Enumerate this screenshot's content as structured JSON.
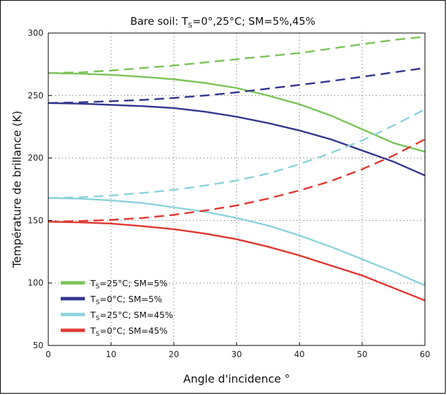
{
  "chart_data": {
    "type": "line",
    "title": "Bare soil: T",
    "title_sub": "S",
    "title_rest": "=0°,25°C; SM=5%,45%",
    "xlabel": "Angle d'incidence °",
    "ylabel": "Température de brillance (K)",
    "xlim": [
      0,
      60
    ],
    "ylim": [
      50,
      300
    ],
    "xticks": [
      0,
      10,
      20,
      30,
      40,
      50,
      60
    ],
    "yticks": [
      50,
      100,
      150,
      200,
      250,
      300
    ],
    "grid": true,
    "legend_position": "bottom-left",
    "x": [
      0,
      5,
      10,
      15,
      20,
      25,
      30,
      35,
      40,
      45,
      50,
      55,
      60
    ],
    "series": [
      {
        "legend_main": "T",
        "legend_sub": "S",
        "legend_rest": "=25°C; SM=5%",
        "color": "#7dc35b",
        "solid": [
          268,
          267.5,
          266.5,
          265,
          263,
          260,
          256,
          250,
          243,
          234,
          223,
          212,
          205
        ],
        "dashed": [
          268,
          268.5,
          270,
          272,
          274,
          276.5,
          279,
          281.5,
          284,
          287.5,
          291,
          294.5,
          297
        ]
      },
      {
        "legend_main": "T",
        "legend_sub": "S",
        "legend_rest": "=0°C; SM=5%",
        "color": "#35388e",
        "solid": [
          244,
          243.5,
          242.5,
          241.5,
          240,
          237,
          233,
          228,
          222,
          215,
          206,
          197,
          186
        ],
        "dashed": [
          244,
          244.5,
          245.5,
          246.5,
          248,
          250,
          252.5,
          255.5,
          258.5,
          261.5,
          265,
          268.5,
          272
        ]
      },
      {
        "legend_main": "T",
        "legend_sub": "S",
        "legend_rest": "=25°C; SM=45%",
        "color": "#8dd3dc",
        "solid": [
          168,
          167.5,
          166,
          164,
          160.5,
          157,
          152,
          146,
          138,
          129,
          119,
          109,
          98
        ],
        "dashed": [
          168,
          168.5,
          170,
          172,
          174.5,
          178,
          182,
          187.5,
          195,
          204,
          214,
          226,
          239
        ]
      },
      {
        "legend_main": "T",
        "legend_sub": "S",
        "legend_rest": "=0°C; SM=45%",
        "color": "#e03a33",
        "solid": [
          149,
          148.5,
          147.5,
          145.5,
          143,
          139.5,
          135,
          129,
          122,
          114,
          106,
          96,
          86
        ],
        "dashed": [
          149,
          149.5,
          150.5,
          152,
          154.5,
          158,
          162,
          167.5,
          174,
          181.5,
          191,
          202,
          215
        ]
      }
    ]
  }
}
